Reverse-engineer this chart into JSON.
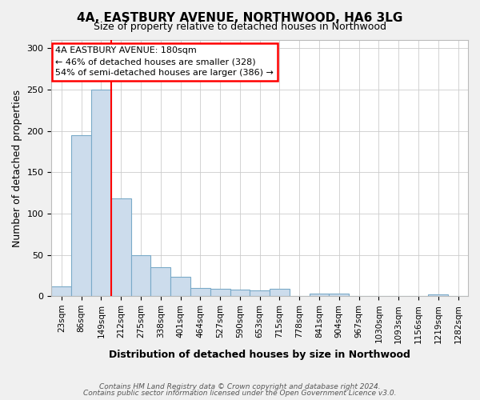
{
  "title": "4A, EASTBURY AVENUE, NORTHWOOD, HA6 3LG",
  "subtitle": "Size of property relative to detached houses in Northwood",
  "xlabel": "Distribution of detached houses by size in Northwood",
  "ylabel": "Number of detached properties",
  "bar_labels": [
    "23sqm",
    "86sqm",
    "149sqm",
    "212sqm",
    "275sqm",
    "338sqm",
    "401sqm",
    "464sqm",
    "527sqm",
    "590sqm",
    "653sqm",
    "715sqm",
    "778sqm",
    "841sqm",
    "904sqm",
    "967sqm",
    "1030sqm",
    "1093sqm",
    "1156sqm",
    "1219sqm",
    "1282sqm"
  ],
  "bar_heights": [
    12,
    195,
    250,
    118,
    50,
    35,
    23,
    10,
    9,
    8,
    7,
    9,
    0,
    3,
    3,
    0,
    0,
    0,
    0,
    2,
    0
  ],
  "bar_color": "#ccdcec",
  "bar_edge_color": "#7aaac8",
  "ylim": [
    0,
    310
  ],
  "red_line_x": 2.5,
  "annotation_line1": "4A EASTBURY AVENUE: 180sqm",
  "annotation_line2": "← 46% of detached houses are smaller (328)",
  "annotation_line3": "54% of semi-detached houses are larger (386) →",
  "footer1": "Contains HM Land Registry data © Crown copyright and database right 2024.",
  "footer2": "Contains public sector information licensed under the Open Government Licence v3.0.",
  "bg_color": "#f0f0f0",
  "plot_bg_color": "#ffffff",
  "grid_color": "#cccccc"
}
